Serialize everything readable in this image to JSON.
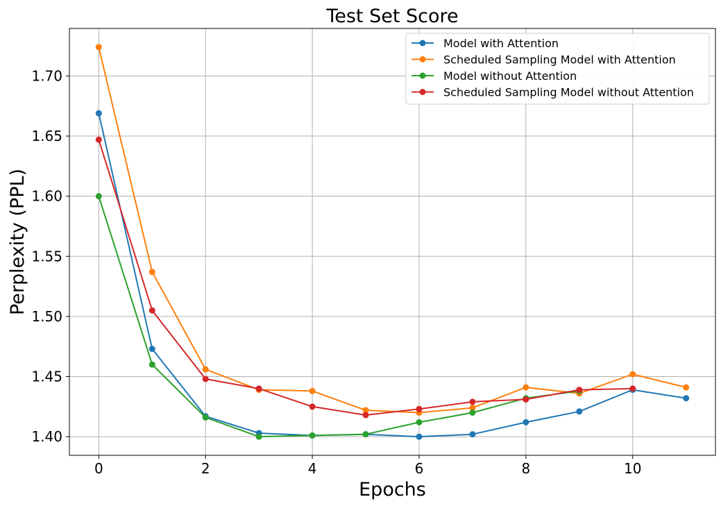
{
  "chart_data": {
    "type": "line",
    "title": "Test Set Score",
    "xlabel": "Epochs",
    "ylabel": "Perplexity (PPL)",
    "xlim": [
      -0.55,
      11.55
    ],
    "ylim": [
      1.3845,
      1.7395
    ],
    "xticks": [
      0,
      2,
      4,
      6,
      8,
      10
    ],
    "xtick_labels": [
      "0",
      "2",
      "4",
      "6",
      "8",
      "10"
    ],
    "yticks": [
      1.4,
      1.45,
      1.5,
      1.55,
      1.6,
      1.65,
      1.7
    ],
    "ytick_labels": [
      "1.40",
      "1.45",
      "1.50",
      "1.55",
      "1.60",
      "1.65",
      "1.70"
    ],
    "grid": true,
    "legend_position": "top-right",
    "series": [
      {
        "name": "Model with Attention",
        "color": "#1f77b4",
        "x": [
          0,
          1,
          2,
          3,
          4,
          5,
          6,
          7,
          8,
          9,
          10,
          11
        ],
        "values": [
          1.669,
          1.473,
          1.417,
          1.403,
          1.401,
          1.402,
          1.4,
          1.402,
          1.412,
          1.421,
          1.439,
          1.432
        ]
      },
      {
        "name": "Scheduled Sampling Model with Attention",
        "color": "#ff7f0e",
        "x": [
          0,
          1,
          2,
          3,
          4,
          5,
          6,
          7,
          8,
          9,
          10,
          11
        ],
        "values": [
          1.724,
          1.537,
          1.456,
          1.439,
          1.438,
          1.422,
          1.42,
          1.424,
          1.441,
          1.436,
          1.452,
          1.441
        ]
      },
      {
        "name": "Model without Attention",
        "color": "#2ca02c",
        "x": [
          0,
          1,
          2,
          3,
          4,
          5,
          6,
          7,
          8,
          9
        ],
        "values": [
          1.6,
          1.46,
          1.416,
          1.4,
          1.401,
          1.402,
          1.412,
          1.42,
          1.432,
          1.438
        ]
      },
      {
        "name": "Scheduled Sampling Model without Attention",
        "color": "#d62728",
        "x": [
          0,
          1,
          2,
          3,
          4,
          5,
          6,
          7,
          8,
          9,
          10
        ],
        "values": [
          1.647,
          1.505,
          1.448,
          1.44,
          1.425,
          1.418,
          1.423,
          1.429,
          1.431,
          1.439,
          1.44
        ]
      }
    ]
  }
}
